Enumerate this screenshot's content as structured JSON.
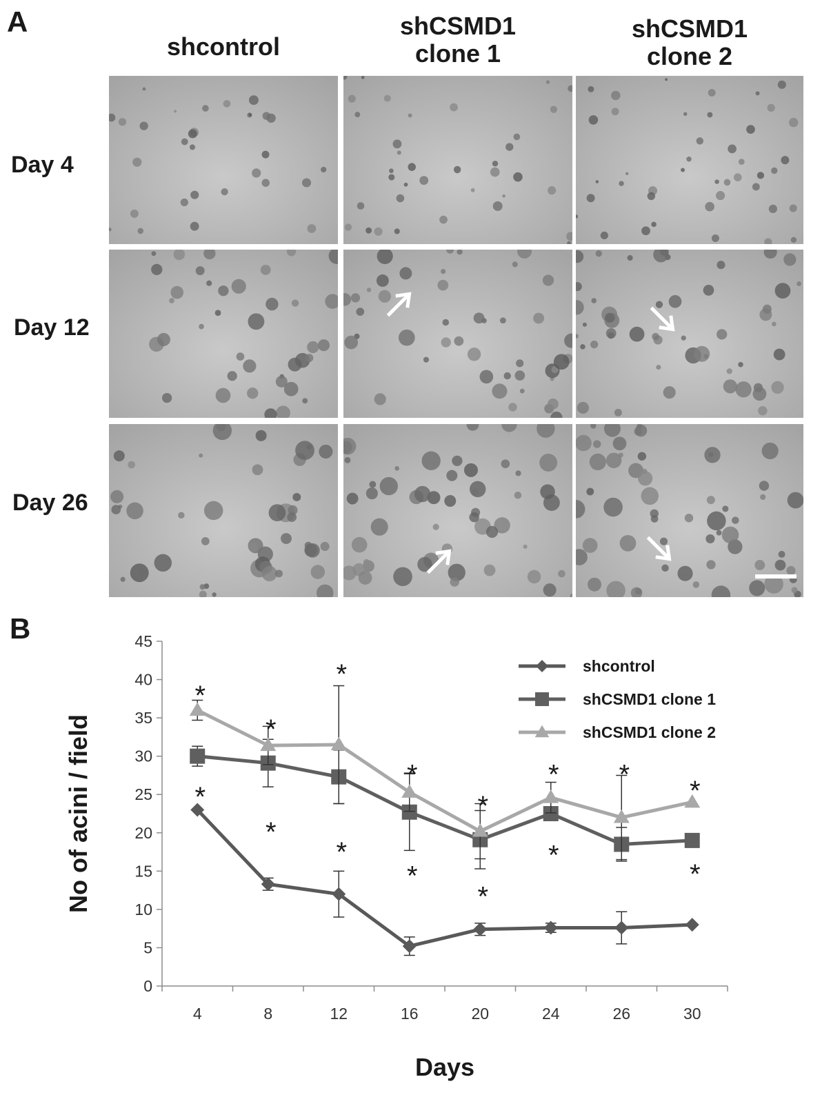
{
  "panel_a": {
    "letter": "A",
    "columns": [
      "shcontrol",
      "shCSMD1\nclone 1",
      "shCSMD1\nclone 2"
    ],
    "rows": [
      "Day 4",
      "Day 12",
      "Day 26"
    ],
    "arrow_icon": "white-arrow-icon",
    "scale_bar_icon": "scale-bar-icon"
  },
  "panel_b": {
    "letter": "B"
  },
  "chart_data": {
    "type": "line",
    "title": "",
    "xlabel": "Days",
    "ylabel": "No of acini / field",
    "categories": [
      "4",
      "8",
      "12",
      "16",
      "20",
      "24",
      "26",
      "30"
    ],
    "ylim": [
      0,
      45
    ],
    "yticks": [
      0,
      5,
      10,
      15,
      20,
      25,
      30,
      35,
      40,
      45
    ],
    "grid": false,
    "legend": "top-right",
    "significance_marker": "*",
    "series": [
      {
        "name": "shcontrol",
        "marker": "diamond",
        "color": "#595959",
        "values": [
          23,
          13.3,
          12,
          5.2,
          7.4,
          7.6,
          7.6,
          8
        ],
        "err": [
          0,
          0.8,
          3,
          1.2,
          0.8,
          0.6,
          2.1,
          0
        ]
      },
      {
        "name": "shCSMD1 clone 1",
        "marker": "square",
        "color": "#5f5f5f",
        "values": [
          30,
          29.1,
          27.3,
          22.7,
          19.1,
          22.5,
          18.5,
          19
        ],
        "err": [
          1.3,
          3.1,
          3.5,
          5,
          3.8,
          0,
          2.2,
          0
        ]
      },
      {
        "name": "shCSMD1 clone 2",
        "marker": "triangle",
        "color": "#a8a8a8",
        "values": [
          36,
          31.4,
          31.5,
          25.3,
          20.2,
          24.6,
          22,
          24
        ],
        "err": [
          1.3,
          2.5,
          7.7,
          2.5,
          3.6,
          2,
          5.5,
          0
        ]
      }
    ],
    "annotations": [
      {
        "x": "4",
        "y": 38.5,
        "text": "*"
      },
      {
        "x": "4",
        "y": 25.3,
        "text": "*"
      },
      {
        "x": "8",
        "y": 34.1,
        "text": "*"
      },
      {
        "x": "8",
        "y": 20.7,
        "text": "*"
      },
      {
        "x": "12",
        "y": 41.3,
        "text": "*"
      },
      {
        "x": "12",
        "y": 18.1,
        "text": "*"
      },
      {
        "x": "16",
        "y": 28.2,
        "text": "*"
      },
      {
        "x": "16",
        "y": 15.0,
        "text": "*"
      },
      {
        "x": "20",
        "y": 24.1,
        "text": "*"
      },
      {
        "x": "20",
        "y": 12.3,
        "text": "*"
      },
      {
        "x": "24",
        "y": 28.2,
        "text": "*"
      },
      {
        "x": "24",
        "y": 17.7,
        "text": "*"
      },
      {
        "x": "26",
        "y": 28.2,
        "text": "*"
      },
      {
        "x": "30",
        "y": 26.1,
        "text": "*"
      },
      {
        "x": "30",
        "y": 15.2,
        "text": "*"
      }
    ]
  }
}
